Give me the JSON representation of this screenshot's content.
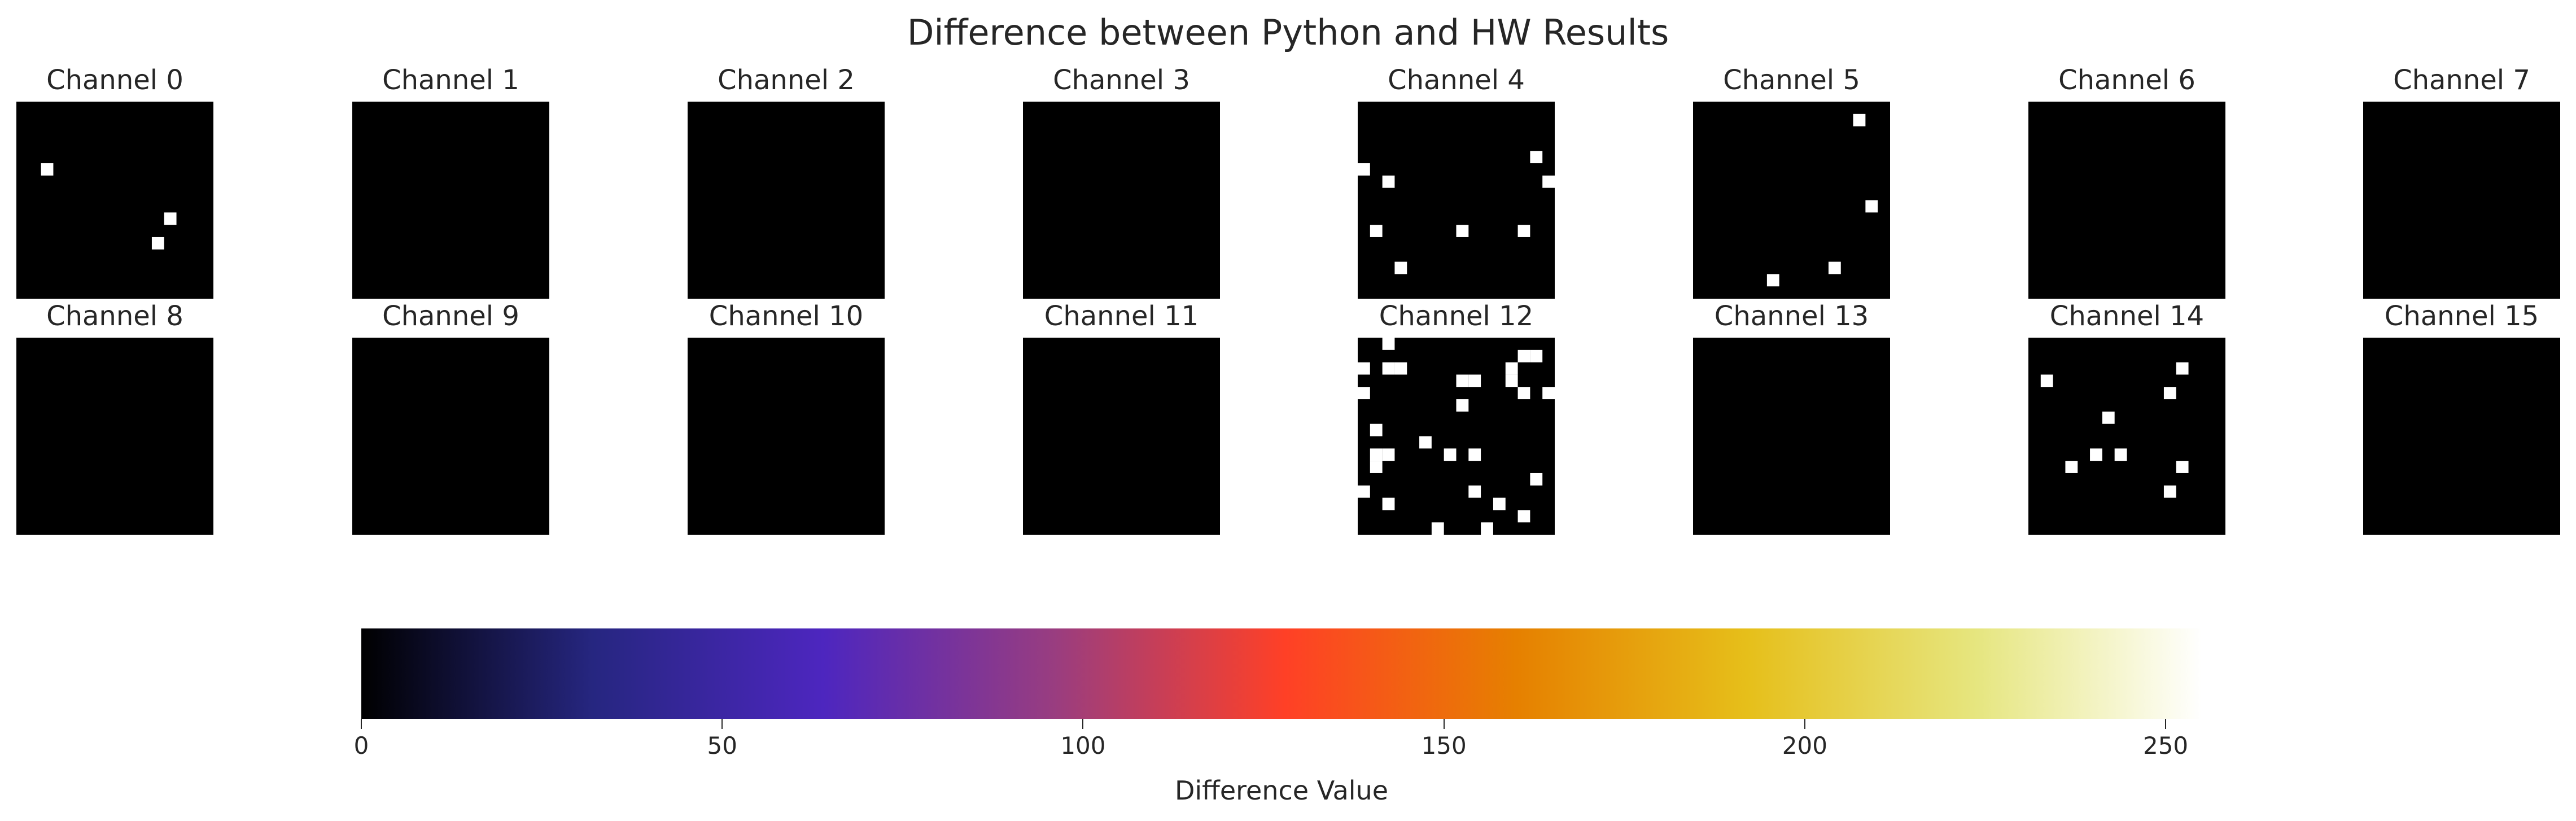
{
  "chart_data": {
    "type": "heatmap",
    "title": "Difference between Python and HW Results",
    "grid_size": 16,
    "value_range": [
      0,
      255
    ],
    "colormap": "CMRmap-like (black → blue → purple → red → orange → yellow → white)",
    "panels": [
      {
        "label": "Channel 0",
        "nonzero_cells": [
          [
            2,
            5
          ],
          [
            12,
            9
          ],
          [
            11,
            11
          ]
        ]
      },
      {
        "label": "Channel 1",
        "nonzero_cells": []
      },
      {
        "label": "Channel 2",
        "nonzero_cells": []
      },
      {
        "label": "Channel 3",
        "nonzero_cells": []
      },
      {
        "label": "Channel 4",
        "nonzero_cells": [
          [
            0,
            5
          ],
          [
            2,
            6
          ],
          [
            14,
            4
          ],
          [
            15,
            6
          ],
          [
            1,
            10
          ],
          [
            8,
            10
          ],
          [
            13,
            10
          ],
          [
            3,
            13
          ]
        ]
      },
      {
        "label": "Channel 5",
        "nonzero_cells": [
          [
            13,
            1
          ],
          [
            14,
            8
          ],
          [
            11,
            13
          ],
          [
            6,
            14
          ]
        ]
      },
      {
        "label": "Channel 6",
        "nonzero_cells": []
      },
      {
        "label": "Channel 7",
        "nonzero_cells": []
      },
      {
        "label": "Channel 8",
        "nonzero_cells": []
      },
      {
        "label": "Channel 9",
        "nonzero_cells": []
      },
      {
        "label": "Channel 10",
        "nonzero_cells": []
      },
      {
        "label": "Channel 11",
        "nonzero_cells": []
      },
      {
        "label": "Channel 12",
        "nonzero_cells": [
          [
            2,
            0
          ],
          [
            13,
            1
          ],
          [
            14,
            1
          ],
          [
            0,
            2
          ],
          [
            2,
            2
          ],
          [
            3,
            2
          ],
          [
            8,
            3
          ],
          [
            9,
            3
          ],
          [
            12,
            2
          ],
          [
            12,
            3
          ],
          [
            0,
            4
          ],
          [
            13,
            4
          ],
          [
            15,
            4
          ],
          [
            8,
            5
          ],
          [
            1,
            7
          ],
          [
            5,
            8
          ],
          [
            1,
            9
          ],
          [
            2,
            9
          ],
          [
            7,
            9
          ],
          [
            9,
            9
          ],
          [
            1,
            10
          ],
          [
            14,
            11
          ],
          [
            0,
            12
          ],
          [
            9,
            12
          ],
          [
            2,
            13
          ],
          [
            11,
            13
          ],
          [
            13,
            14
          ],
          [
            6,
            15
          ],
          [
            10,
            15
          ]
        ]
      },
      {
        "label": "Channel 13",
        "nonzero_cells": []
      },
      {
        "label": "Channel 14",
        "nonzero_cells": [
          [
            12,
            2
          ],
          [
            1,
            3
          ],
          [
            11,
            4
          ],
          [
            6,
            6
          ],
          [
            5,
            9
          ],
          [
            7,
            9
          ],
          [
            3,
            10
          ],
          [
            12,
            10
          ],
          [
            11,
            12
          ]
        ]
      },
      {
        "label": "Channel 15",
        "nonzero_cells": []
      }
    ],
    "nonzero_value": 255,
    "colorbar": {
      "label": "Difference Value",
      "range": [
        0,
        255
      ],
      "ticks": [
        "0",
        "50",
        "100",
        "150",
        "200",
        "250"
      ],
      "tick_values": [
        0,
        50,
        100,
        150,
        200,
        250
      ],
      "stops": [
        {
          "value": 0,
          "color": "#000000"
        },
        {
          "value": 32,
          "color": "#262680"
        },
        {
          "value": 64,
          "color": "#4d26bf"
        },
        {
          "value": 96,
          "color": "#993d80"
        },
        {
          "value": 128,
          "color": "#ff4026"
        },
        {
          "value": 160,
          "color": "#e68000"
        },
        {
          "value": 192,
          "color": "#e6bf1a"
        },
        {
          "value": 224,
          "color": "#e6e680"
        },
        {
          "value": 255,
          "color": "#ffffff"
        }
      ]
    }
  }
}
